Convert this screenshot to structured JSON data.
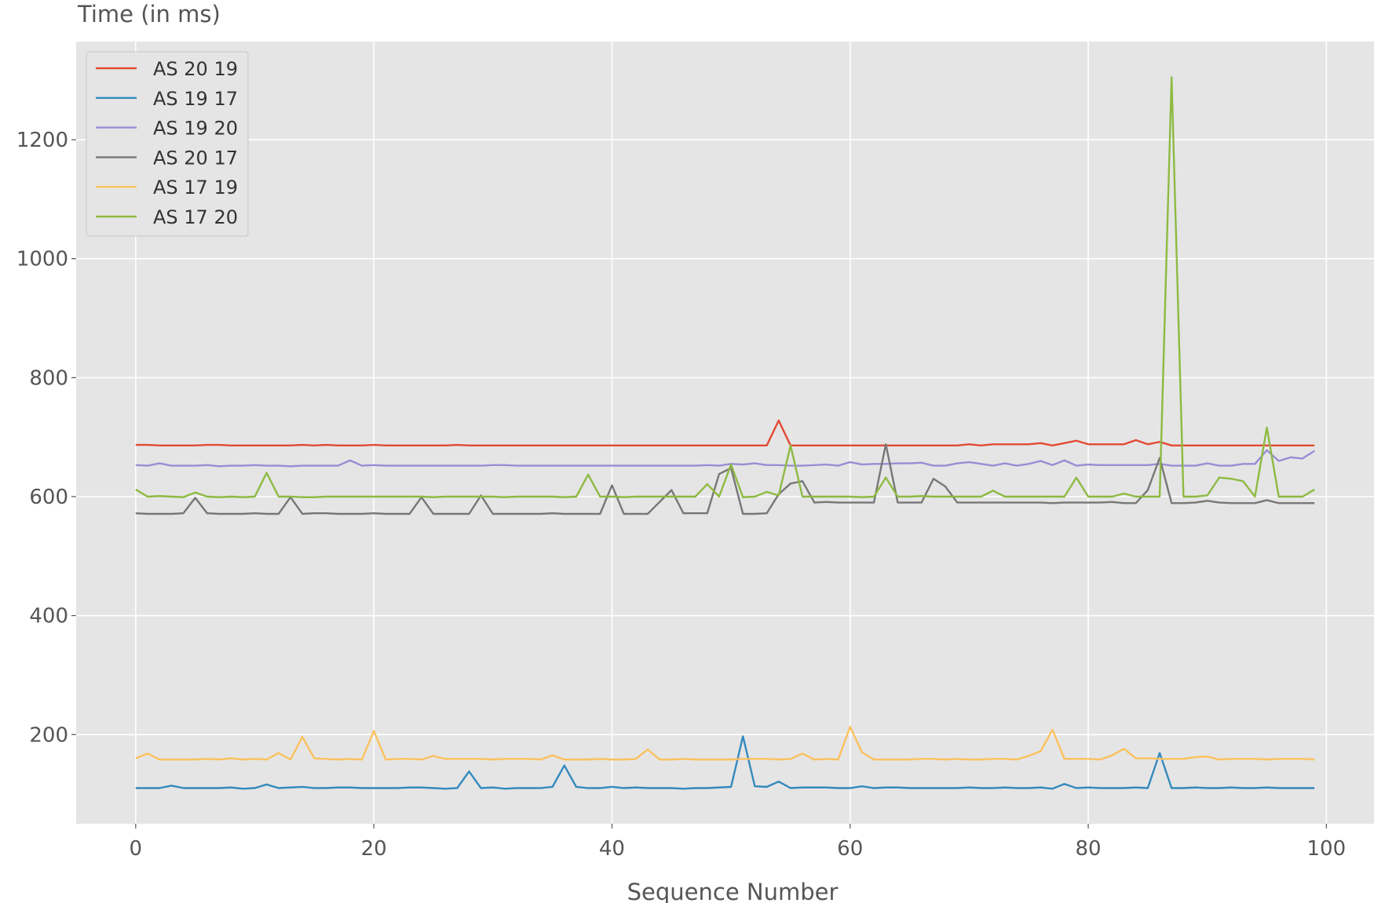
{
  "chart_data": {
    "type": "line",
    "title": "",
    "ylabel": "Time (in ms)",
    "xlabel": "Sequence Number",
    "xlim": [
      -5,
      104
    ],
    "ylim": [
      50,
      1365
    ],
    "x_ticks": [
      0,
      20,
      40,
      60,
      80,
      100
    ],
    "y_ticks": [
      200,
      400,
      600,
      800,
      1000,
      1200
    ],
    "grid": true,
    "legend_position": "top-left",
    "x": [
      0,
      1,
      2,
      3,
      4,
      5,
      6,
      7,
      8,
      9,
      10,
      11,
      12,
      13,
      14,
      15,
      16,
      17,
      18,
      19,
      20,
      21,
      22,
      23,
      24,
      25,
      26,
      27,
      28,
      29,
      30,
      31,
      32,
      33,
      34,
      35,
      36,
      37,
      38,
      39,
      40,
      41,
      42,
      43,
      44,
      45,
      46,
      47,
      48,
      49,
      50,
      51,
      52,
      53,
      54,
      55,
      56,
      57,
      58,
      59,
      60,
      61,
      62,
      63,
      64,
      65,
      66,
      67,
      68,
      69,
      70,
      71,
      72,
      73,
      74,
      75,
      76,
      77,
      78,
      79,
      80,
      81,
      82,
      83,
      84,
      85,
      86,
      87,
      88,
      89,
      90,
      91,
      92,
      93,
      94,
      95,
      96,
      97,
      98,
      99
    ],
    "series": [
      {
        "name": "AS 20 19",
        "color": "#E24A33",
        "values": [
          687,
          687,
          686,
          686,
          686,
          686,
          687,
          687,
          686,
          686,
          686,
          686,
          686,
          686,
          687,
          686,
          687,
          686,
          686,
          686,
          687,
          686,
          686,
          686,
          686,
          686,
          686,
          687,
          686,
          686,
          686,
          686,
          686,
          686,
          686,
          686,
          686,
          686,
          686,
          686,
          686,
          686,
          686,
          686,
          686,
          686,
          686,
          686,
          686,
          686,
          686,
          686,
          686,
          686,
          728,
          686,
          686,
          686,
          686,
          686,
          686,
          686,
          686,
          686,
          686,
          686,
          686,
          686,
          686,
          686,
          688,
          686,
          688,
          688,
          688,
          688,
          690,
          686,
          690,
          694,
          688,
          688,
          688,
          688,
          695,
          688,
          692,
          686,
          686,
          686,
          686,
          686,
          686,
          686,
          686,
          686,
          686,
          686,
          686,
          686
        ]
      },
      {
        "name": "AS 19 17",
        "color": "#348ABD",
        "values": [
          110,
          110,
          110,
          114,
          110,
          110,
          110,
          110,
          111,
          109,
          110,
          116,
          110,
          111,
          112,
          110,
          110,
          111,
          111,
          110,
          110,
          110,
          110,
          111,
          111,
          110,
          109,
          110,
          138,
          110,
          111,
          109,
          110,
          110,
          110,
          112,
          148,
          112,
          110,
          110,
          112,
          110,
          111,
          110,
          110,
          110,
          109,
          110,
          110,
          111,
          112,
          197,
          113,
          112,
          121,
          110,
          111,
          111,
          111,
          110,
          110,
          113,
          110,
          111,
          111,
          110,
          110,
          110,
          110,
          110,
          111,
          110,
          110,
          111,
          110,
          110,
          111,
          109,
          117,
          110,
          111,
          110,
          110,
          110,
          111,
          110,
          169,
          110,
          110,
          111,
          110,
          110,
          111,
          110,
          110,
          111,
          110,
          110,
          110,
          110
        ]
      },
      {
        "name": "AS 19 20",
        "color": "#988ED5",
        "values": [
          653,
          652,
          656,
          652,
          652,
          652,
          653,
          651,
          652,
          652,
          653,
          652,
          652,
          651,
          652,
          652,
          652,
          652,
          661,
          652,
          653,
          652,
          652,
          652,
          652,
          652,
          652,
          652,
          652,
          652,
          653,
          653,
          652,
          652,
          652,
          652,
          652,
          652,
          652,
          652,
          652,
          652,
          652,
          652,
          652,
          652,
          652,
          652,
          653,
          652,
          655,
          654,
          656,
          653,
          653,
          652,
          652,
          653,
          654,
          652,
          658,
          654,
          655,
          655,
          656,
          656,
          657,
          652,
          652,
          656,
          658,
          655,
          652,
          656,
          652,
          655,
          660,
          653,
          661,
          652,
          654,
          653,
          653,
          653,
          653,
          653,
          655,
          652,
          652,
          652,
          656,
          652,
          652,
          655,
          655,
          678,
          660,
          666,
          664,
          677
        ]
      },
      {
        "name": "AS 20 17",
        "color": "#777777",
        "values": [
          572,
          571,
          571,
          571,
          572,
          598,
          572,
          571,
          571,
          571,
          572,
          571,
          571,
          599,
          571,
          572,
          572,
          571,
          571,
          571,
          572,
          571,
          571,
          571,
          599,
          571,
          571,
          571,
          571,
          602,
          571,
          571,
          571,
          571,
          571,
          572,
          571,
          571,
          571,
          571,
          619,
          571,
          571,
          571,
          591,
          611,
          572,
          572,
          572,
          638,
          648,
          571,
          571,
          572,
          604,
          622,
          626,
          590,
          591,
          590,
          590,
          590,
          590,
          688,
          590,
          590,
          590,
          630,
          617,
          590,
          590,
          590,
          590,
          590,
          590,
          590,
          590,
          589,
          590,
          590,
          590,
          590,
          591,
          589,
          589,
          611,
          665,
          589,
          589,
          590,
          593,
          590,
          589,
          589,
          589,
          594,
          589,
          589,
          589,
          589
        ]
      },
      {
        "name": "AS 17 19",
        "color": "#FBC15E",
        "values": [
          160,
          168,
          158,
          158,
          158,
          158,
          159,
          158,
          160,
          158,
          159,
          158,
          169,
          158,
          196,
          160,
          159,
          158,
          159,
          158,
          206,
          158,
          159,
          159,
          158,
          164,
          159,
          159,
          159,
          159,
          158,
          159,
          159,
          159,
          158,
          165,
          158,
          158,
          158,
          159,
          158,
          158,
          159,
          175,
          158,
          158,
          159,
          158,
          158,
          158,
          158,
          159,
          159,
          159,
          158,
          159,
          168,
          158,
          159,
          158,
          213,
          170,
          158,
          158,
          158,
          158,
          159,
          159,
          158,
          159,
          158,
          158,
          159,
          159,
          158,
          164,
          172,
          208,
          159,
          159,
          159,
          158,
          165,
          176,
          160,
          160,
          159,
          159,
          159,
          162,
          163,
          158,
          159,
          159,
          159,
          158,
          159,
          159,
          159,
          158
        ]
      },
      {
        "name": "AS 17 20",
        "color": "#8EBA42",
        "values": [
          612,
          600,
          601,
          600,
          599,
          607,
          600,
          599,
          600,
          599,
          600,
          640,
          600,
          600,
          599,
          599,
          600,
          600,
          600,
          600,
          600,
          600,
          600,
          600,
          600,
          599,
          600,
          600,
          600,
          600,
          600,
          599,
          600,
          600,
          600,
          600,
          599,
          600,
          637,
          600,
          600,
          599,
          600,
          600,
          600,
          600,
          600,
          600,
          621,
          600,
          654,
          599,
          600,
          608,
          602,
          686,
          600,
          600,
          600,
          600,
          600,
          599,
          600,
          632,
          600,
          600,
          601,
          600,
          600,
          600,
          600,
          600,
          610,
          600,
          600,
          600,
          600,
          600,
          600,
          632,
          600,
          600,
          600,
          605,
          600,
          600,
          600,
          1305,
          600,
          600,
          602,
          632,
          630,
          626,
          600,
          716,
          600,
          600,
          600,
          612
        ]
      }
    ]
  }
}
